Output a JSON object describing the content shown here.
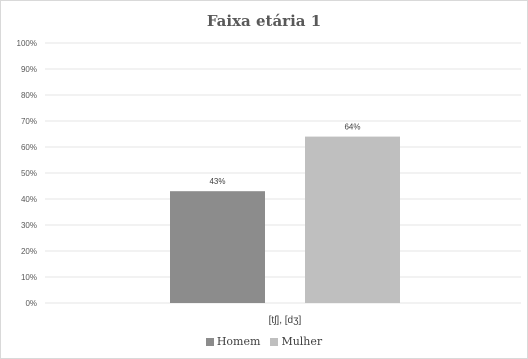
{
  "chart_data": {
    "type": "bar",
    "title": "Faixa etária 1",
    "categories": [
      "[tʃ], [dʒ]"
    ],
    "series": [
      {
        "name": "Homem",
        "values": [
          43
        ],
        "color": "#8c8c8c",
        "data_labels": [
          "43%"
        ]
      },
      {
        "name": "Mulher",
        "values": [
          64
        ],
        "color": "#bfbfbf",
        "data_labels": [
          "64%"
        ]
      }
    ],
    "ylim": [
      0,
      100
    ],
    "yticks": [
      0,
      10,
      20,
      30,
      40,
      50,
      60,
      70,
      80,
      90,
      100
    ],
    "ytick_labels": [
      "0%",
      "10%",
      "20%",
      "30%",
      "40%",
      "50%",
      "60%",
      "70%",
      "80%",
      "90%",
      "100%"
    ],
    "xlabel": "",
    "ylabel": "",
    "grid": true,
    "legend_position": "bottom"
  }
}
